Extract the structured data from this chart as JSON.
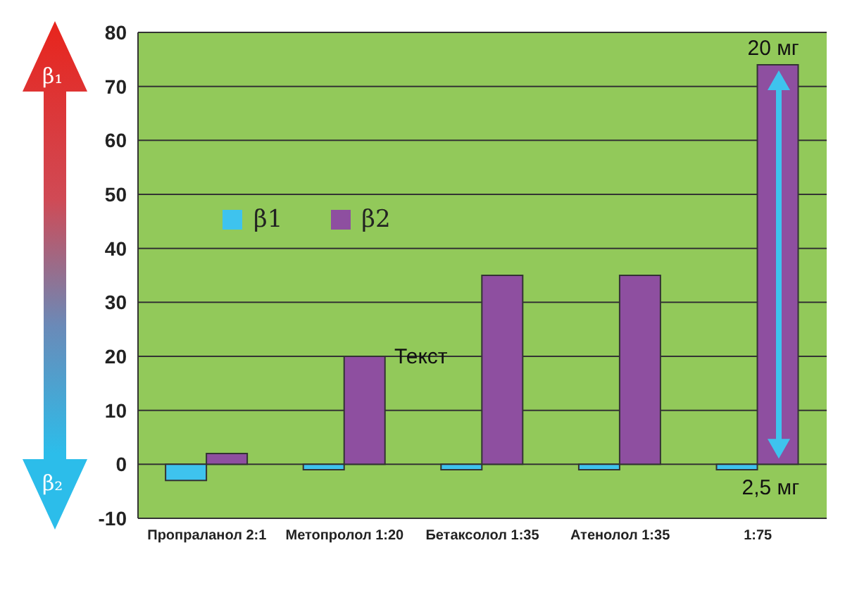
{
  "chart_data": {
    "type": "bar",
    "categories": [
      "Пропраланол 2:1",
      "Метопролол 1:20",
      "Бетаксолол 1:35",
      "Атенолол 1:35",
      "1:75"
    ],
    "series": [
      {
        "name": "β1",
        "color": "#3ec3ee",
        "values": [
          -3,
          -1,
          -1,
          -1,
          -1
        ]
      },
      {
        "name": "β2",
        "color": "#8e4fa0",
        "values": [
          2,
          20,
          35,
          35,
          74
        ]
      }
    ],
    "ylim": [
      -10,
      80
    ],
    "yticks": [
      -10,
      0,
      10,
      20,
      30,
      40,
      50,
      60,
      70,
      80
    ],
    "grid": "y",
    "legend": "top left",
    "annotations": [
      "β₁",
      "β₂",
      "Текст",
      "20 мг",
      "2,5 мг"
    ]
  }
}
